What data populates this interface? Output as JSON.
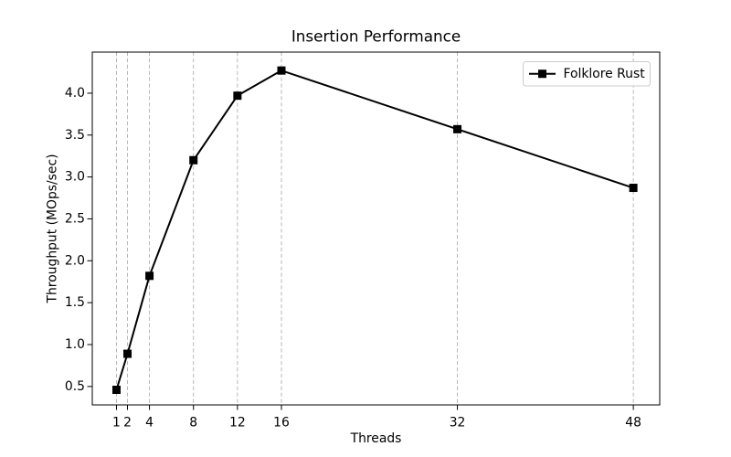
{
  "figure": {
    "background": "#ffffff"
  },
  "chart_data": {
    "type": "line",
    "title": "Insertion Performance",
    "xlabel": "Threads",
    "ylabel": "Throughput (MOps/sec)",
    "series": [
      {
        "name": "Folklore Rust",
        "color": "#000000",
        "marker": "square",
        "x": [
          1,
          2,
          4,
          8,
          12,
          16,
          32,
          48
        ],
        "values": [
          0.46,
          0.89,
          1.82,
          3.2,
          3.97,
          4.27,
          3.57,
          2.87
        ]
      }
    ],
    "x_ticks": [
      1,
      2,
      4,
      8,
      12,
      16,
      32,
      48
    ],
    "x_tick_labels": [
      "1",
      "2",
      "4",
      "8",
      "12",
      "16",
      "32",
      "48"
    ],
    "y_ticks": [
      0.5,
      1.0,
      1.5,
      2.0,
      2.5,
      3.0,
      3.5,
      4.0
    ],
    "y_tick_labels": [
      "0.5",
      "1.0",
      "1.5",
      "2.0",
      "2.5",
      "3.0",
      "3.5",
      "4.0"
    ],
    "xlim": [
      -1.2,
      50.4
    ],
    "ylim": [
      0.28,
      4.49
    ],
    "grid": {
      "vertical": true,
      "horizontal": false,
      "style": "dashed",
      "color": "#b0b0b0"
    },
    "legend": {
      "position": "upper right",
      "entries": [
        {
          "label": "Folklore Rust",
          "marker": "square",
          "color": "#000000"
        }
      ]
    }
  }
}
